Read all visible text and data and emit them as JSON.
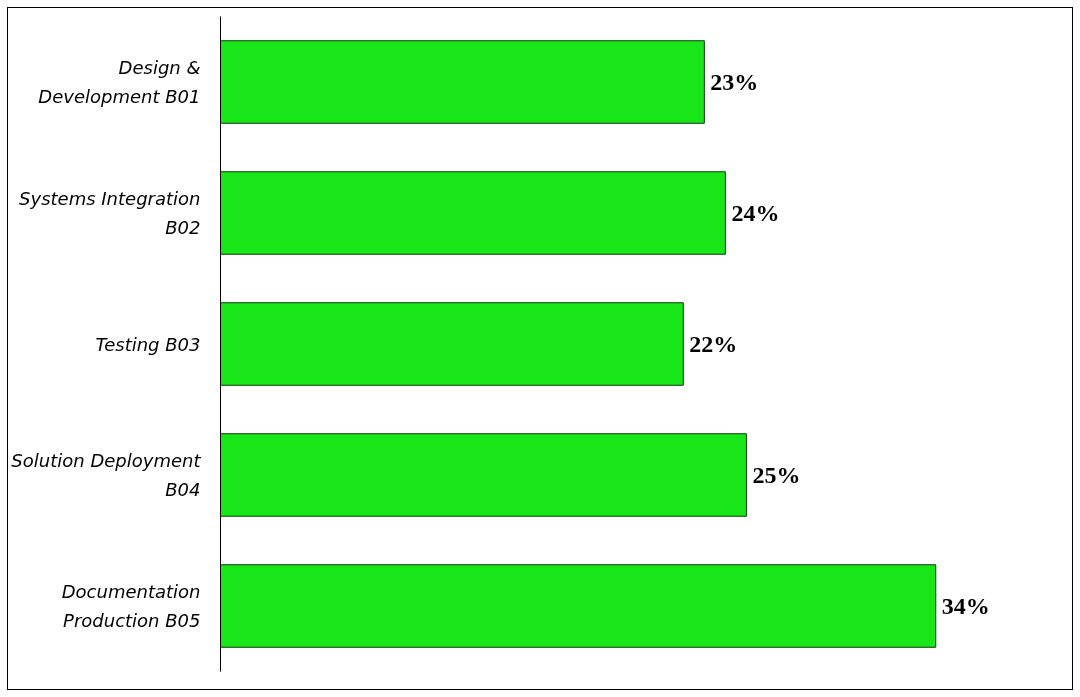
{
  "chart_data": {
    "type": "bar",
    "orientation": "horizontal",
    "categories": [
      "Design & Development B01",
      "Systems Integration B02",
      "Testing B03",
      "Solution Deployment B04",
      "Documentation Production B05"
    ],
    "values": [
      23,
      24,
      22,
      25,
      34
    ],
    "value_labels": [
      "23%",
      "24%",
      "22%",
      "25%",
      "34%"
    ],
    "color": "#19e619",
    "grid": false,
    "tick_labels": "y"
  }
}
